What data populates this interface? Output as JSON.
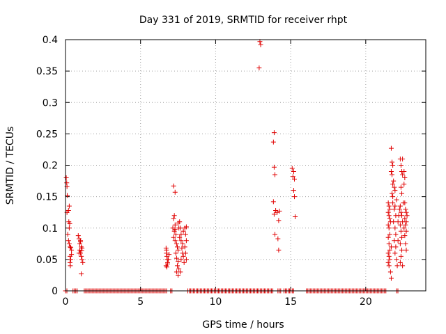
{
  "chart_data": {
    "type": "scatter",
    "title": "Day 331 of 2019, SRMTID for receiver rhpt",
    "xlabel": "GPS time / hours",
    "ylabel": "SRMTID / TECUs",
    "xlim": [
      0,
      24
    ],
    "ylim": [
      0,
      0.4
    ],
    "grid": true,
    "marker": "+",
    "color": "#e00000",
    "xticks": [
      0,
      5,
      10,
      15,
      20
    ],
    "xtick_labels": [
      "0",
      "5",
      "10",
      "15",
      "20"
    ],
    "yticks": [
      0,
      0.05,
      0.1,
      0.15,
      0.2,
      0.25,
      0.3,
      0.35,
      0.4
    ],
    "ytick_labels": [
      "0",
      "0.05",
      "0.1",
      "0.15",
      "0.2",
      "0.25",
      "0.3",
      "0.35",
      "0.4"
    ],
    "zero_segments": [
      [
        0.0,
        0.15
      ],
      [
        0.5,
        0.85
      ],
      [
        1.25,
        6.75
      ],
      [
        7.0,
        7.15
      ],
      [
        8.15,
        13.9
      ],
      [
        14.15,
        14.4
      ],
      [
        14.55,
        15.2
      ],
      [
        16.05,
        21.35
      ],
      [
        22.05,
        22.15
      ]
    ],
    "points": [
      [
        0.05,
        0.18
      ],
      [
        0.08,
        0.172
      ],
      [
        0.1,
        0.166
      ],
      [
        0.12,
        0.152
      ],
      [
        0.1,
        0.125
      ],
      [
        0.2,
        0.128
      ],
      [
        0.25,
        0.135
      ],
      [
        0.22,
        0.11
      ],
      [
        0.28,
        0.107
      ],
      [
        0.15,
        0.09
      ],
      [
        0.2,
        0.08
      ],
      [
        0.25,
        0.075
      ],
      [
        0.3,
        0.07
      ],
      [
        0.35,
        0.069
      ],
      [
        0.4,
        0.065
      ],
      [
        0.3,
        0.055
      ],
      [
        0.35,
        0.05
      ],
      [
        0.3,
        0.045
      ],
      [
        0.32,
        0.04
      ],
      [
        0.4,
        0.058
      ],
      [
        0.25,
        0.1
      ],
      [
        0.85,
        0.088
      ],
      [
        0.9,
        0.083
      ],
      [
        0.95,
        0.075
      ],
      [
        1.0,
        0.078
      ],
      [
        1.05,
        0.07
      ],
      [
        1.1,
        0.068
      ],
      [
        0.95,
        0.065
      ],
      [
        1.0,
        0.06
      ],
      [
        1.05,
        0.055
      ],
      [
        1.1,
        0.05
      ],
      [
        1.15,
        0.045
      ],
      [
        0.9,
        0.06
      ],
      [
        1.0,
        0.08
      ],
      [
        1.08,
        0.064
      ],
      [
        1.05,
        0.027
      ],
      [
        6.7,
        0.068
      ],
      [
        6.72,
        0.06
      ],
      [
        6.75,
        0.055
      ],
      [
        6.78,
        0.05
      ],
      [
        6.8,
        0.045
      ],
      [
        6.7,
        0.04
      ],
      [
        6.75,
        0.038
      ],
      [
        6.8,
        0.043
      ],
      [
        6.85,
        0.05
      ],
      [
        6.9,
        0.058
      ],
      [
        6.72,
        0.065
      ],
      [
        7.2,
        0.167
      ],
      [
        7.3,
        0.157
      ],
      [
        7.25,
        0.12
      ],
      [
        7.2,
        0.115
      ],
      [
        7.3,
        0.105
      ],
      [
        7.15,
        0.1
      ],
      [
        7.25,
        0.095
      ],
      [
        7.35,
        0.09
      ],
      [
        7.2,
        0.085
      ],
      [
        7.3,
        0.08
      ],
      [
        7.4,
        0.075
      ],
      [
        7.45,
        0.07
      ],
      [
        7.5,
        0.065
      ],
      [
        7.35,
        0.06
      ],
      [
        7.4,
        0.052
      ],
      [
        7.5,
        0.047
      ],
      [
        7.45,
        0.04
      ],
      [
        7.55,
        0.035
      ],
      [
        7.4,
        0.03
      ],
      [
        7.5,
        0.025
      ],
      [
        7.6,
        0.11
      ],
      [
        7.65,
        0.1
      ],
      [
        7.7,
        0.09
      ],
      [
        7.6,
        0.085
      ],
      [
        7.7,
        0.08
      ],
      [
        7.8,
        0.075
      ],
      [
        7.75,
        0.068
      ],
      [
        7.8,
        0.06
      ],
      [
        7.85,
        0.055
      ],
      [
        7.7,
        0.05
      ],
      [
        7.9,
        0.045
      ],
      [
        7.95,
        0.1
      ],
      [
        8.0,
        0.09
      ],
      [
        8.05,
        0.08
      ],
      [
        7.95,
        0.07
      ],
      [
        8.0,
        0.06
      ],
      [
        8.05,
        0.05
      ],
      [
        7.55,
        0.1
      ],
      [
        7.3,
        0.098
      ],
      [
        7.5,
        0.108
      ],
      [
        7.85,
        0.095
      ],
      [
        8.05,
        0.102
      ],
      [
        7.65,
        0.03
      ],
      [
        12.95,
        0.397
      ],
      [
        13.0,
        0.392
      ],
      [
        12.9,
        0.355
      ],
      [
        13.9,
        0.252
      ],
      [
        13.85,
        0.237
      ],
      [
        13.9,
        0.197
      ],
      [
        13.95,
        0.185
      ],
      [
        13.85,
        0.142
      ],
      [
        14.0,
        0.128
      ],
      [
        13.9,
        0.122
      ],
      [
        14.1,
        0.125
      ],
      [
        14.25,
        0.127
      ],
      [
        14.2,
        0.112
      ],
      [
        13.95,
        0.09
      ],
      [
        14.15,
        0.083
      ],
      [
        14.2,
        0.065
      ],
      [
        15.1,
        0.195
      ],
      [
        15.2,
        0.19
      ],
      [
        15.15,
        0.182
      ],
      [
        15.25,
        0.178
      ],
      [
        15.2,
        0.16
      ],
      [
        15.25,
        0.15
      ],
      [
        15.3,
        0.118
      ],
      [
        21.7,
        0.227
      ],
      [
        21.75,
        0.205
      ],
      [
        21.8,
        0.2
      ],
      [
        21.7,
        0.19
      ],
      [
        21.75,
        0.185
      ],
      [
        21.85,
        0.175
      ],
      [
        21.8,
        0.17
      ],
      [
        21.9,
        0.165
      ],
      [
        21.95,
        0.16
      ],
      [
        21.75,
        0.155
      ],
      [
        21.8,
        0.15
      ],
      [
        21.5,
        0.14
      ],
      [
        21.55,
        0.135
      ],
      [
        21.6,
        0.13
      ],
      [
        21.5,
        0.125
      ],
      [
        21.55,
        0.12
      ],
      [
        21.6,
        0.115
      ],
      [
        21.65,
        0.11
      ],
      [
        21.5,
        0.105
      ],
      [
        21.55,
        0.1
      ],
      [
        21.6,
        0.09
      ],
      [
        21.5,
        0.085
      ],
      [
        21.55,
        0.075
      ],
      [
        21.6,
        0.065
      ],
      [
        21.5,
        0.06
      ],
      [
        21.55,
        0.055
      ],
      [
        21.6,
        0.05
      ],
      [
        21.5,
        0.045
      ],
      [
        21.55,
        0.04
      ],
      [
        21.65,
        0.03
      ],
      [
        21.7,
        0.02
      ],
      [
        21.8,
        0.14
      ],
      [
        21.9,
        0.13
      ],
      [
        22.0,
        0.12
      ],
      [
        21.85,
        0.11
      ],
      [
        21.95,
        0.1
      ],
      [
        22.0,
        0.09
      ],
      [
        21.9,
        0.08
      ],
      [
        22.0,
        0.07
      ],
      [
        21.95,
        0.06
      ],
      [
        22.05,
        0.05
      ],
      [
        22.1,
        0.04
      ],
      [
        22.15,
        0.11
      ],
      [
        22.2,
        0.12
      ],
      [
        22.25,
        0.13
      ],
      [
        22.3,
        0.21
      ],
      [
        22.35,
        0.2
      ],
      [
        22.4,
        0.19
      ],
      [
        22.45,
        0.185
      ],
      [
        22.35,
        0.165
      ],
      [
        22.4,
        0.155
      ],
      [
        22.5,
        0.14
      ],
      [
        22.3,
        0.135
      ],
      [
        22.35,
        0.125
      ],
      [
        22.4,
        0.12
      ],
      [
        22.45,
        0.11
      ],
      [
        22.3,
        0.105
      ],
      [
        22.35,
        0.095
      ],
      [
        22.4,
        0.085
      ],
      [
        22.3,
        0.075
      ],
      [
        22.4,
        0.065
      ],
      [
        22.35,
        0.055
      ],
      [
        22.3,
        0.045
      ],
      [
        22.45,
        0.04
      ],
      [
        22.55,
        0.19
      ],
      [
        22.6,
        0.18
      ],
      [
        22.55,
        0.17
      ],
      [
        22.6,
        0.14
      ],
      [
        22.65,
        0.13
      ],
      [
        22.7,
        0.125
      ],
      [
        22.6,
        0.115
      ],
      [
        22.65,
        0.105
      ],
      [
        22.7,
        0.095
      ],
      [
        22.6,
        0.088
      ],
      [
        22.65,
        0.075
      ],
      [
        22.7,
        0.065
      ],
      [
        22.75,
        0.12
      ],
      [
        22.55,
        0.1
      ],
      [
        22.7,
        0.11
      ],
      [
        21.7,
        0.07
      ],
      [
        22.05,
        0.145
      ],
      [
        22.45,
        0.21
      ],
      [
        22.15,
        0.08
      ],
      [
        21.95,
        0.135
      ]
    ]
  }
}
